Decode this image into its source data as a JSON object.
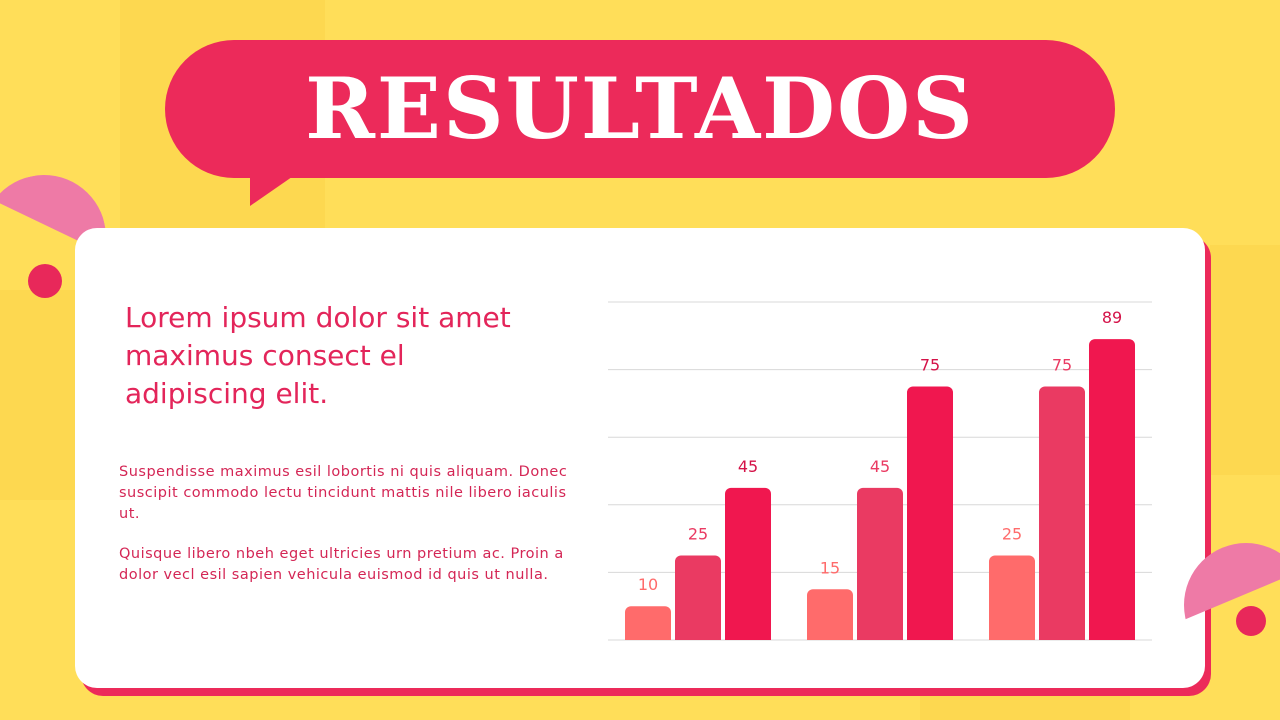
{
  "slide": {
    "title": "RESULTADOS",
    "headline": "Lorem ipsum dolor sit amet maximus consect el adipiscing elit.",
    "paragraph_1": "Suspendisse maximus esil lobortis ni quis aliquam. Donec suscipit commodo lectu tincidunt mattis nile libero iaculis ut.",
    "paragraph_2": "Quisque libero nbeh eget ultricies urn pretium ac. Proin a dolor vecl esil sapien vehicula euismod id quis ut nulla."
  },
  "colors": {
    "background": "#FFDE59",
    "accent_pink": "#EC2A5A",
    "light_pink": "#EE7AA6",
    "series_1": "#FF6B6B",
    "series_2": "#EA3A62",
    "series_3": "#F0174F"
  },
  "chart_data": {
    "type": "bar",
    "title": "",
    "xlabel": "",
    "ylabel": "",
    "ylim": [
      0,
      100
    ],
    "grid": true,
    "legend": "none",
    "categories": [
      "",
      "",
      ""
    ],
    "series": [
      {
        "values": [
          10,
          15,
          25
        ],
        "color": "#FF6B6B",
        "label_color": "#FF6B6B"
      },
      {
        "values": [
          25,
          45,
          75
        ],
        "color": "#EA3A62",
        "label_color": "#EA3A62"
      },
      {
        "values": [
          45,
          75,
          89
        ],
        "color": "#F0174F",
        "label_color": "#D41248"
      }
    ]
  }
}
